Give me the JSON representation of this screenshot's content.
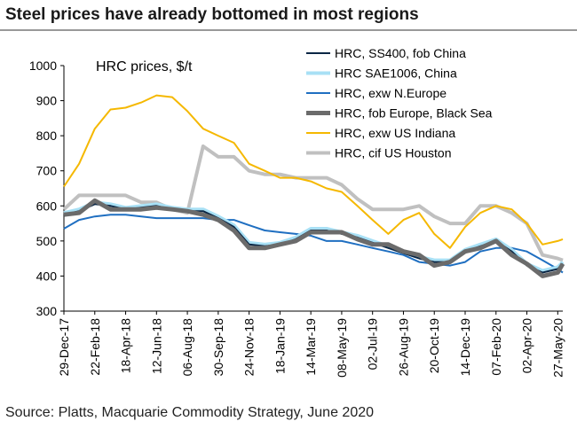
{
  "chart_data": {
    "type": "line",
    "title": "Steel prices have already bottomed in most regions",
    "annotation": "HRC prices, $/t",
    "source": "Source: Platts, Macquarie Commodity Strategy, June 2020",
    "x": [
      "29-Dec-17",
      "25-Jan-18",
      "22-Feb-18",
      "22-Mar-18",
      "18-Apr-18",
      "16-May-18",
      "12-Jun-18",
      "10-Jul-18",
      "06-Aug-18",
      "03-Sep-18",
      "30-Sep-18",
      "28-Oct-18",
      "24-Nov-18",
      "22-Dec-18",
      "18-Jan-19",
      "15-Feb-19",
      "14-Mar-19",
      "11-Apr-19",
      "08-May-19",
      "05-Jun-19",
      "02-Jul-19",
      "30-Jul-19",
      "26-Aug-19",
      "23-Sep-19",
      "20-Oct-19",
      "17-Nov-19",
      "14-Dec-19",
      "10-Jan-20",
      "07-Feb-20",
      "06-Mar-20",
      "02-Apr-20",
      "30-Apr-20",
      "27-May-20",
      "05-Jun-20"
    ],
    "xlim": [
      "29-Dec-17",
      "05-Jun-20"
    ],
    "xticks": [
      "29-Dec-17",
      "22-Feb-18",
      "18-Apr-18",
      "12-Jun-18",
      "06-Aug-18",
      "30-Sep-18",
      "24-Nov-18",
      "18-Jan-19",
      "14-Mar-19",
      "08-May-19",
      "02-Jul-19",
      "26-Aug-19",
      "20-Oct-19",
      "14-Dec-19",
      "07-Feb-20",
      "02-Apr-20",
      "27-May-20"
    ],
    "ylim": [
      300,
      1000
    ],
    "yticks": [
      300,
      400,
      500,
      600,
      700,
      800,
      900,
      1000
    ],
    "series": [
      {
        "name": "HRC, SS400, fob China",
        "color": "#0b2745",
        "values": [
          575,
          585,
          605,
          600,
          590,
          595,
          600,
          590,
          585,
          585,
          565,
          540,
          490,
          485,
          490,
          505,
          530,
          530,
          520,
          510,
          495,
          480,
          465,
          450,
          440,
          440,
          470,
          485,
          500,
          470,
          430,
          410,
          420,
          435
        ]
      },
      {
        "name": "HRC SAE1006, China",
        "color": "#a8e0f5",
        "values": [
          580,
          590,
          610,
          605,
          595,
          600,
          605,
          595,
          590,
          590,
          570,
          545,
          495,
          490,
          495,
          510,
          535,
          535,
          525,
          515,
          500,
          485,
          470,
          455,
          445,
          445,
          475,
          490,
          505,
          475,
          435,
          415,
          425,
          440
        ]
      },
      {
        "name": "HRC, exw N.Europe",
        "color": "#1f6fc1",
        "values": [
          535,
          560,
          570,
          575,
          575,
          570,
          565,
          565,
          565,
          565,
          560,
          560,
          545,
          530,
          525,
          520,
          515,
          500,
          500,
          490,
          480,
          470,
          460,
          440,
          435,
          430,
          440,
          470,
          480,
          480,
          470,
          445,
          420,
          410
        ]
      },
      {
        "name": "HRC, fob Europe, Black Sea",
        "color": "#6b6b6b",
        "values": [
          575,
          580,
          615,
          590,
          590,
          590,
          595,
          590,
          585,
          575,
          560,
          530,
          480,
          480,
          490,
          500,
          525,
          525,
          525,
          505,
          490,
          490,
          470,
          460,
          430,
          440,
          470,
          480,
          500,
          460,
          435,
          400,
          410,
          435
        ]
      },
      {
        "name": "HRC, exw US Indiana",
        "color": "#f5b800",
        "values": [
          655,
          720,
          820,
          875,
          880,
          895,
          915,
          910,
          870,
          820,
          800,
          780,
          720,
          700,
          680,
          680,
          670,
          650,
          640,
          600,
          560,
          520,
          560,
          580,
          520,
          480,
          540,
          580,
          600,
          590,
          550,
          490,
          500,
          505
        ]
      },
      {
        "name": "HRC, cif US Houston",
        "color": "#c0c0c0",
        "values": [
          590,
          630,
          630,
          630,
          630,
          610,
          610,
          590,
          580,
          770,
          740,
          740,
          700,
          690,
          690,
          680,
          680,
          680,
          660,
          620,
          590,
          590,
          590,
          600,
          570,
          550,
          550,
          600,
          600,
          580,
          550,
          460,
          450,
          445
        ]
      }
    ]
  }
}
